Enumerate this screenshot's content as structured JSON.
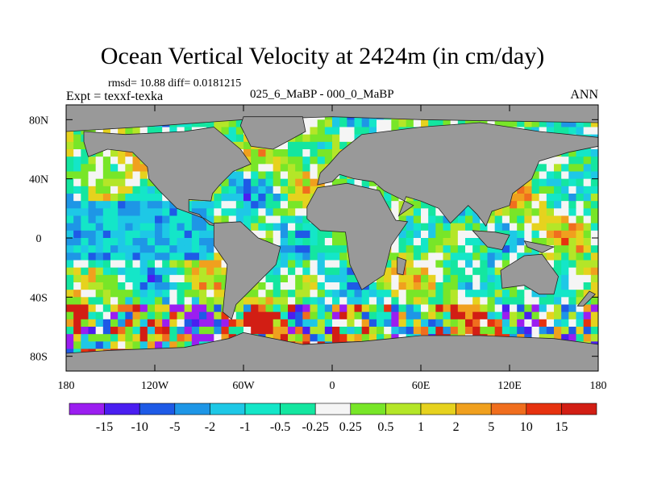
{
  "title": "Ocean Vertical Velocity at 2424m (in cm/day)",
  "stats_text": "rmsd= 10.88 diff= 0.0181215",
  "expt_text": "Expt = texxf-texka",
  "center_text": "025_6_MaBP - 000_0_MaBP",
  "season_text": "ANN",
  "chart_data": {
    "type": "heatmap",
    "title": "Ocean Vertical Velocity at 2424m (in cm/day)",
    "x_range": [
      -180,
      180
    ],
    "y_range": [
      -90,
      90
    ],
    "x_ticks": [
      {
        "value": -180,
        "label": "180"
      },
      {
        "value": -120,
        "label": "120W"
      },
      {
        "value": -60,
        "label": "60W"
      },
      {
        "value": 0,
        "label": "0"
      },
      {
        "value": 60,
        "label": "60E"
      },
      {
        "value": 120,
        "label": "120E"
      },
      {
        "value": 180,
        "label": "180"
      }
    ],
    "y_ticks": [
      {
        "value": 80,
        "label": "80N"
      },
      {
        "value": 40,
        "label": "40N"
      },
      {
        "value": 0,
        "label": "0"
      },
      {
        "value": -40,
        "label": "40S"
      },
      {
        "value": -80,
        "label": "80S"
      }
    ],
    "land_color": "#999999",
    "colorbar": {
      "levels": [
        "-15",
        "-10",
        "-5",
        "-2",
        "-1",
        "-0.5",
        "-0.25",
        "0.25",
        "0.5",
        "1",
        "2",
        "5",
        "10",
        "15"
      ],
      "colors": [
        "#9b1ef0",
        "#4a1ef0",
        "#1e5ae6",
        "#1e96e6",
        "#1ec8e6",
        "#14e6c8",
        "#14e6a0",
        "#f5f5f5",
        "#78e628",
        "#b4e628",
        "#e6d21e",
        "#f0a01e",
        "#f06e1e",
        "#e6320f",
        "#d21e14"
      ]
    }
  }
}
